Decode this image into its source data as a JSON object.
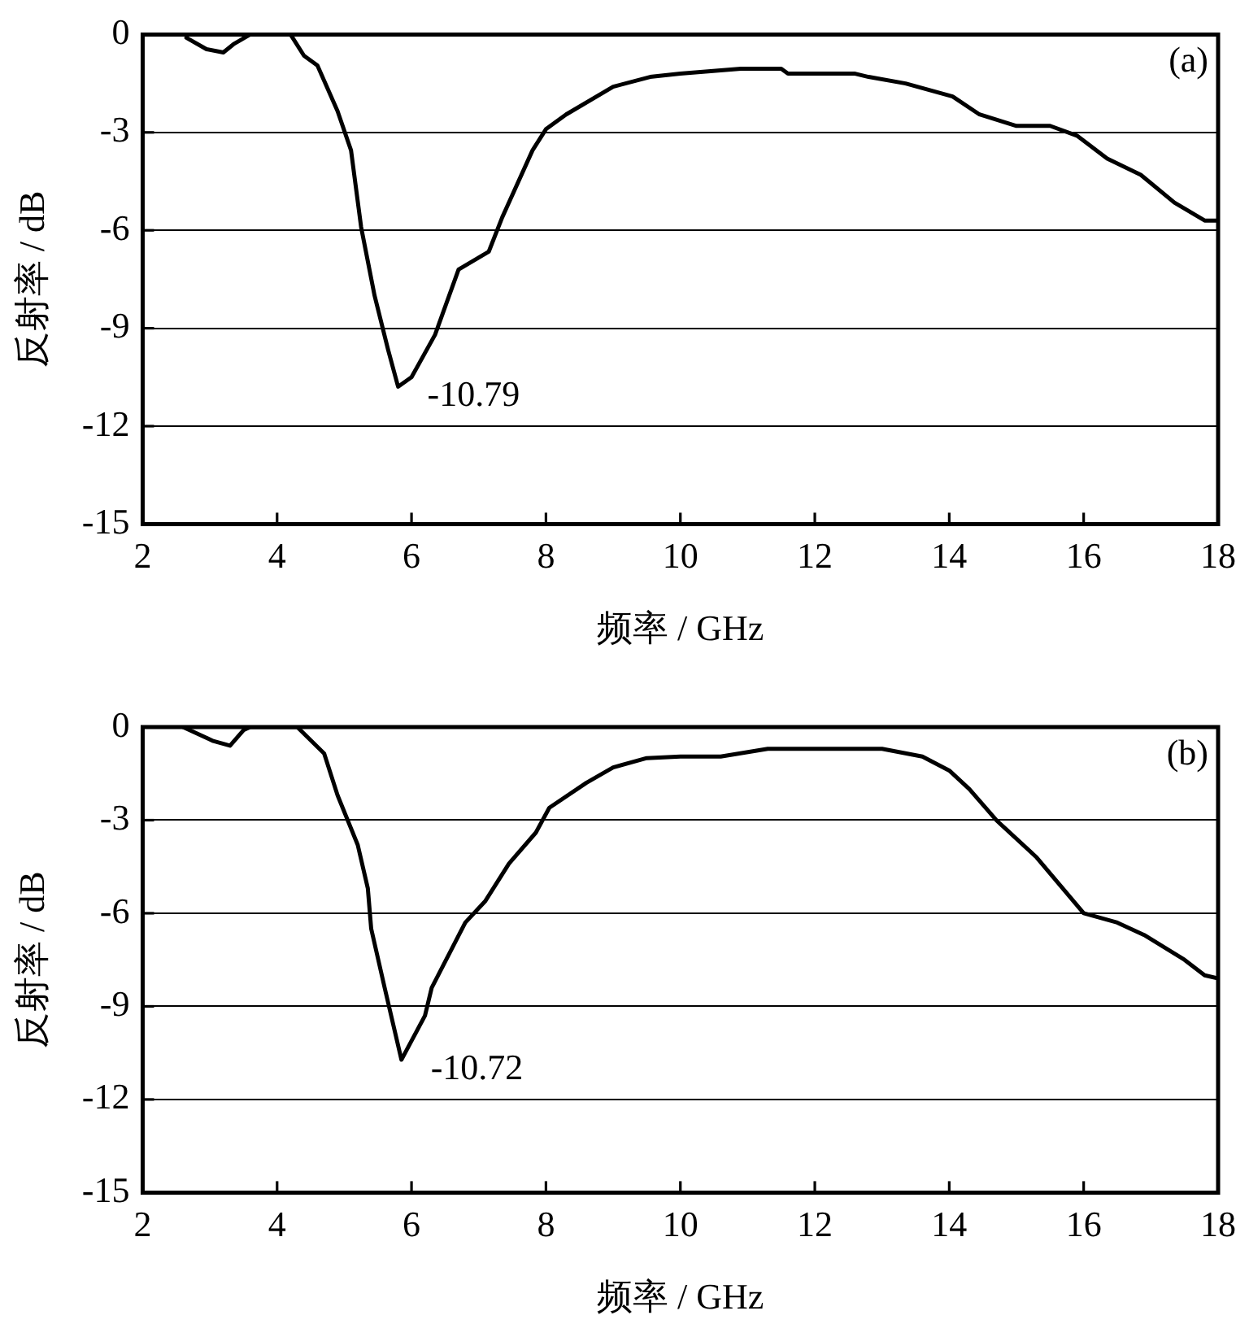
{
  "chart_data": [
    {
      "type": "line",
      "xlabel": "频率 / GHz",
      "ylabel": "反射率 / dB",
      "xlim": [
        2,
        18
      ],
      "xticks": [
        2,
        4,
        6,
        8,
        10,
        12,
        14,
        16,
        18
      ],
      "ylim": [
        -15,
        0
      ],
      "yticks": [
        -15,
        -12,
        -9,
        -6,
        -3,
        0
      ],
      "grid": "y",
      "legend": false,
      "marker": "none",
      "line_style": "solid",
      "annotations": [
        "(a)",
        {
          "text": "-10.79",
          "x": 5.8,
          "y": -10.79
        }
      ],
      "series": [
        {
          "color": "#000000",
          "x": [
            2.65,
            2.95,
            3.2,
            3.35,
            3.6,
            4.2,
            4.4,
            4.6,
            4.9,
            5.1,
            5.25,
            5.45,
            5.65,
            5.8,
            6.0,
            6.35,
            6.7,
            7.15,
            7.35,
            7.8,
            8.0,
            8.3,
            9.0,
            9.55,
            10.0,
            10.9,
            11.5,
            11.6,
            12.6,
            12.8,
            13.35,
            14.05,
            14.45,
            15.0,
            15.5,
            15.9,
            16.35,
            16.85,
            17.35,
            17.8,
            18.0
          ],
          "values": [
            -0.1,
            -0.45,
            -0.55,
            -0.3,
            0,
            0,
            -0.65,
            -0.95,
            -2.35,
            -3.55,
            -5.9,
            -8.0,
            -9.65,
            -10.79,
            -10.5,
            -9.2,
            -7.2,
            -6.65,
            -5.6,
            -3.55,
            -2.9,
            -2.45,
            -1.6,
            -1.3,
            -1.2,
            -1.05,
            -1.05,
            -1.2,
            -1.2,
            -1.3,
            -1.5,
            -1.9,
            -2.45,
            -2.8,
            -2.8,
            -3.1,
            -3.8,
            -4.3,
            -5.15,
            -5.7,
            -5.7
          ]
        }
      ]
    },
    {
      "type": "line",
      "xlabel": "频率 / GHz",
      "ylabel": "反射率 / dB",
      "xlim": [
        2,
        18
      ],
      "xticks": [
        2,
        4,
        6,
        8,
        10,
        12,
        14,
        16,
        18
      ],
      "ylim": [
        -15,
        0
      ],
      "yticks": [
        -15,
        -12,
        -9,
        -6,
        -3,
        0
      ],
      "grid": "y",
      "legend": false,
      "marker": "none",
      "line_style": "solid",
      "annotations": [
        "(b)",
        {
          "text": "-10.72",
          "x": 5.85,
          "y": -10.72
        }
      ],
      "series": [
        {
          "color": "#000000",
          "x": [
            2.6,
            3.05,
            3.3,
            3.5,
            3.6,
            4.3,
            4.7,
            4.9,
            5.2,
            5.35,
            5.4,
            5.6,
            5.85,
            6.2,
            6.3,
            6.8,
            7.1,
            7.45,
            7.85,
            8.05,
            8.6,
            9.0,
            9.5,
            10.0,
            10.6,
            11.3,
            13.0,
            13.6,
            14.0,
            14.3,
            14.7,
            15.3,
            16.0,
            16.5,
            16.9,
            17.5,
            17.8,
            18.0
          ],
          "values": [
            0,
            -0.45,
            -0.6,
            -0.1,
            0,
            0,
            -0.85,
            -2.2,
            -3.8,
            -5.2,
            -6.5,
            -8.4,
            -10.72,
            -9.3,
            -8.4,
            -6.3,
            -5.6,
            -4.4,
            -3.4,
            -2.6,
            -1.8,
            -1.3,
            -1.0,
            -0.95,
            -0.95,
            -0.7,
            -0.7,
            -0.95,
            -1.4,
            -2.0,
            -3.0,
            -4.2,
            -6.0,
            -6.3,
            -6.7,
            -7.5,
            -8.0,
            -8.1
          ]
        }
      ]
    }
  ]
}
